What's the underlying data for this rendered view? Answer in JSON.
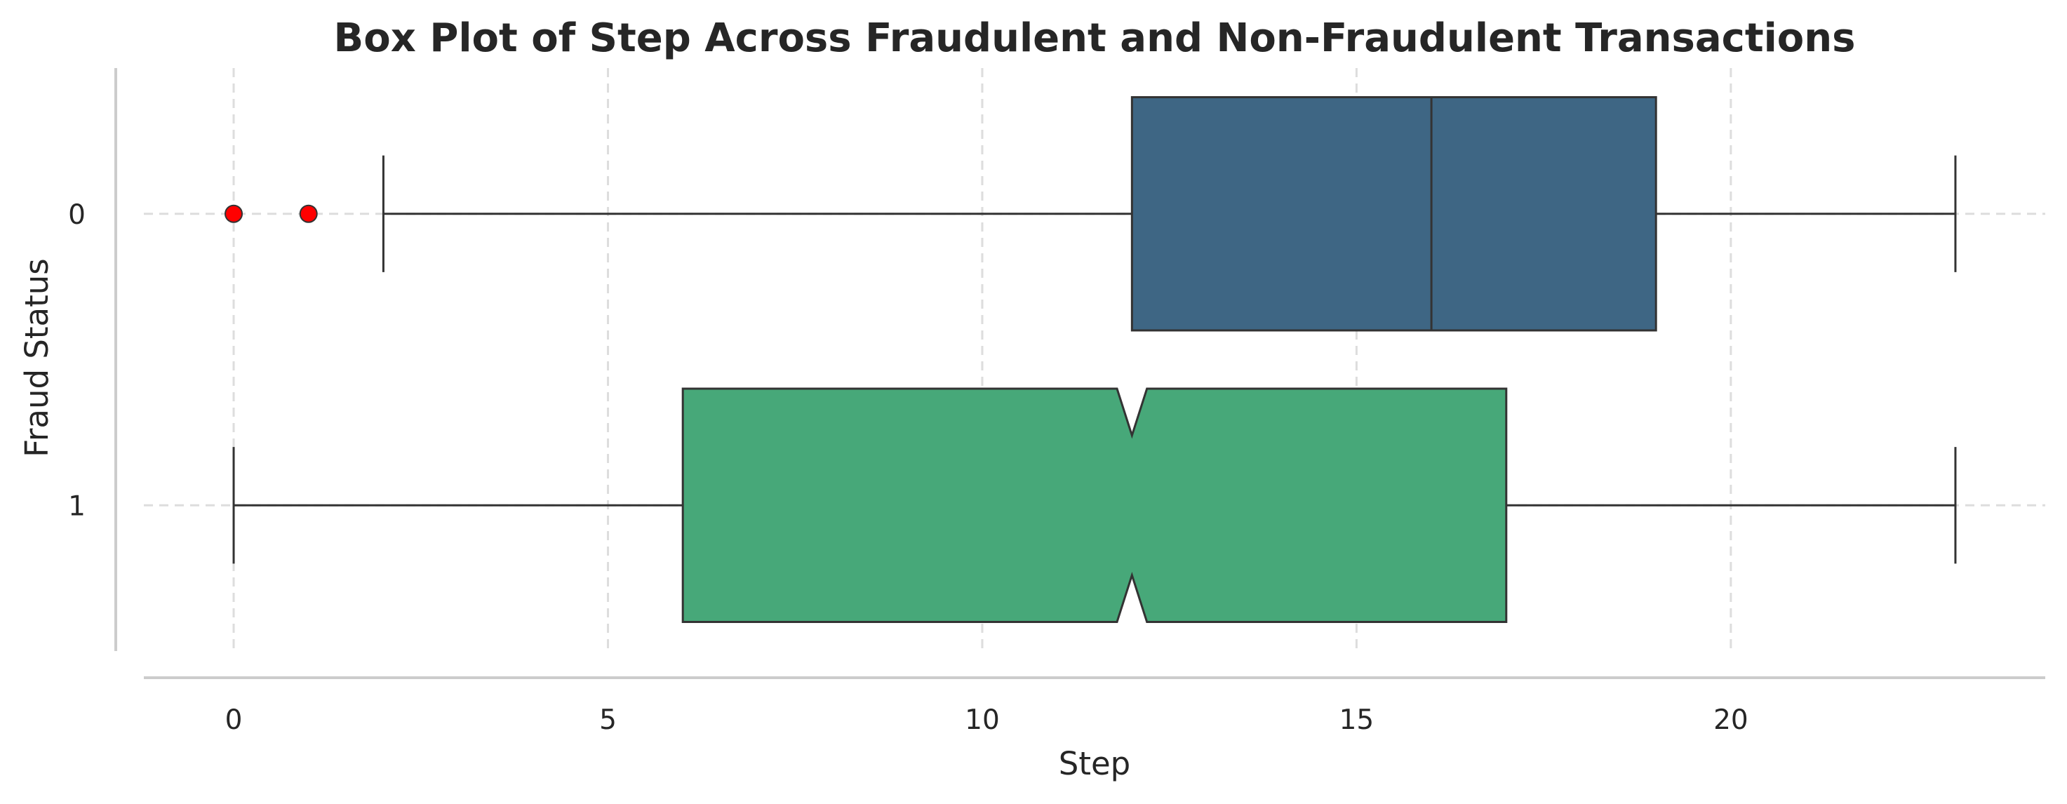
{
  "chart_data": {
    "type": "box",
    "orientation": "horizontal",
    "title": "Box Plot of Step Across Fraudulent and Non-Fraudulent Transactions",
    "xlabel": "Step",
    "ylabel": "Fraud Status",
    "xlim": [
      -1.2,
      24.2
    ],
    "xticks": [
      0,
      5,
      10,
      15,
      20
    ],
    "grid": true,
    "categories": [
      "0",
      "1"
    ],
    "boxes": [
      {
        "category": "0",
        "whisker_low": 2,
        "q1": 12,
        "median": 16,
        "q3": 19,
        "whisker_high": 23,
        "outliers": [
          0,
          1
        ],
        "notch": false,
        "color": "#3e6684"
      },
      {
        "category": "1",
        "whisker_low": 0,
        "q1": 6,
        "median": 12,
        "q3": 17,
        "whisker_high": 23,
        "outliers": [],
        "notch": true,
        "notch_low": 11.8,
        "notch_high": 12.2,
        "color": "#47a879"
      }
    ],
    "outlier_color": "#ff0000"
  }
}
